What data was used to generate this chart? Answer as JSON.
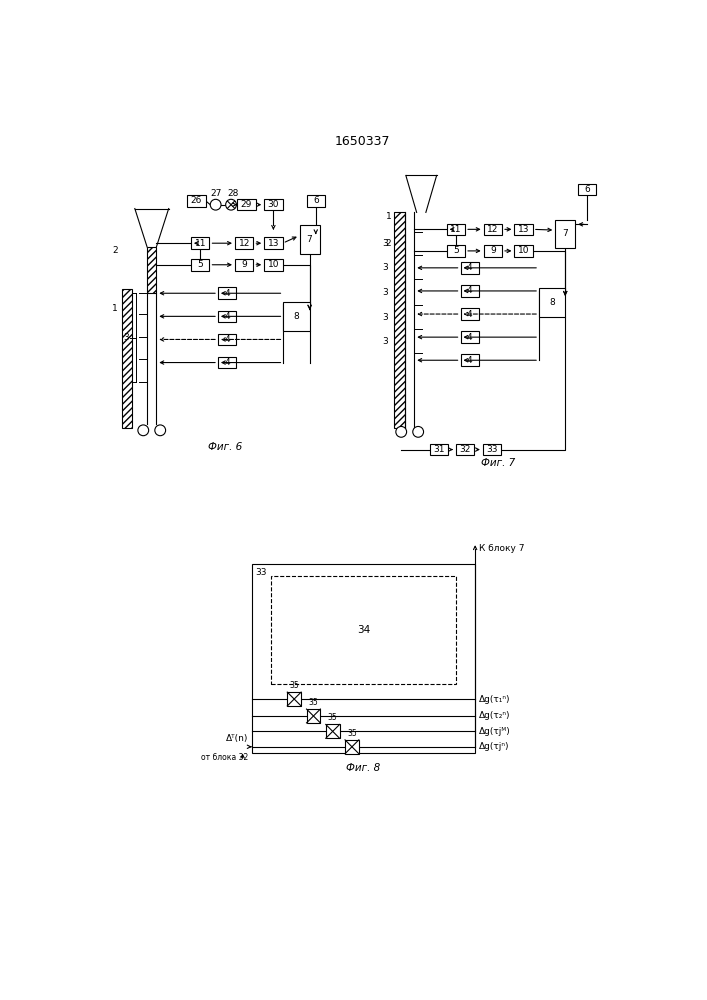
{
  "title": "1650337",
  "fig6_label": "Фиг. 6",
  "fig7_label": "Фиг. 7",
  "fig8_label": "Фиг. 8",
  "k_blok7": "К блоку 7",
  "ot_bloka32": "от блока 32",
  "delta_T_n": "Δᵀ(n)",
  "out1": "Δg(τ₁ⁿ)",
  "out2": "Δg(τ₂ⁿ)",
  "out3": "Δg(τjᴹ)",
  "out4": "Δg(τjⁿ)"
}
